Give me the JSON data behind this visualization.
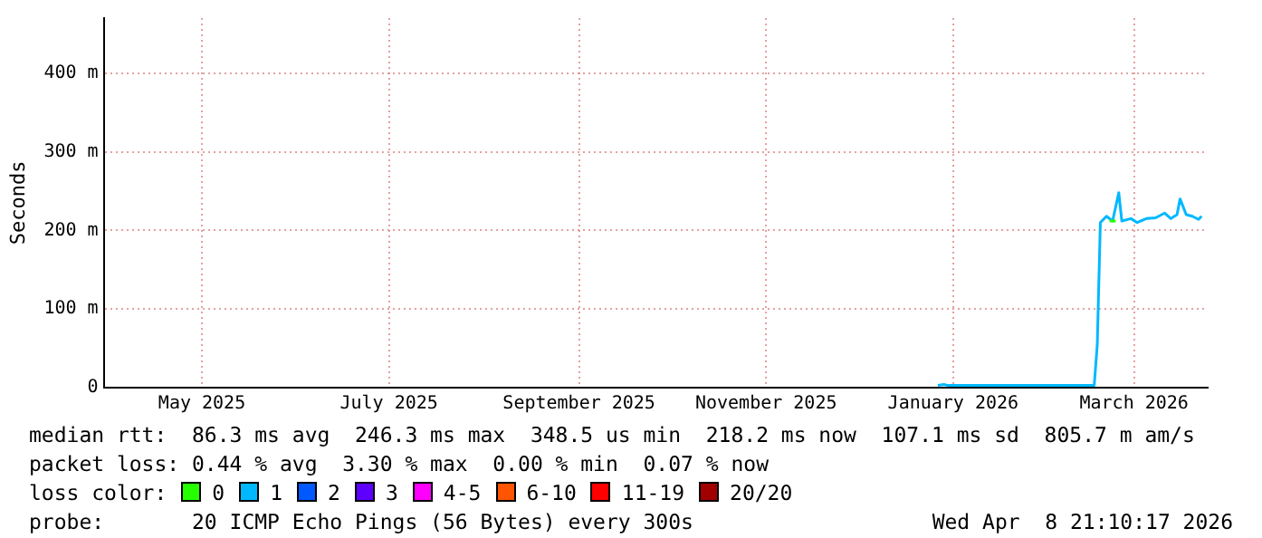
{
  "chart_data": {
    "type": "line",
    "ylabel": "Seconds",
    "legend_title": "loss color:",
    "legend": "bottom",
    "grid": true,
    "marker": "none",
    "line_style": "solid",
    "xlim": [
      "2025-04-13",
      "2026-04-08"
    ],
    "xticks": [
      {
        "value": "2025-05-15",
        "label": "May 2025"
      },
      {
        "value": "2025-07-15",
        "label": "July 2025"
      },
      {
        "value": "2025-09-15",
        "label": "September 2025"
      },
      {
        "value": "2025-11-15",
        "label": "November 2025"
      },
      {
        "value": "2026-01-15",
        "label": "January 2026"
      },
      {
        "value": "2026-03-15",
        "label": "March 2026"
      }
    ],
    "ylim": [
      0,
      470
    ],
    "yticks": [
      0,
      {
        "value": 100,
        "label": "100 m"
      },
      {
        "value": 200,
        "label": "200 m"
      },
      {
        "value": 300,
        "label": "300 m"
      },
      {
        "value": 400,
        "label": "400 m"
      }
    ],
    "series": [
      {
        "name": "0",
        "color": "#26ff00",
        "x": [
          "2026-03-07",
          "2026-03-09"
        ],
        "values": [
          212,
          212
        ]
      },
      {
        "name": "1",
        "color": "#00b8ff",
        "x": [
          "2026-01-10",
          "2026-01-12",
          "2026-01-13",
          "2026-03-02",
          "2026-03-03",
          "2026-03-04",
          "2026-03-06",
          "2026-03-08",
          "2026-03-10",
          "2026-03-11",
          "2026-03-14",
          "2026-03-16",
          "2026-03-19",
          "2026-03-22",
          "2026-03-25",
          "2026-03-27",
          "2026-03-29",
          "2026-03-30",
          "2026-04-01",
          "2026-04-03",
          "2026-04-05",
          "2026-04-06"
        ],
        "values": [
          3,
          4,
          3,
          3,
          55,
          210,
          218,
          212,
          248,
          212,
          215,
          210,
          215,
          216,
          222,
          215,
          220,
          240,
          220,
          218,
          214,
          218
        ]
      },
      {
        "name": "2",
        "color": "#0059ff"
      },
      {
        "name": "3",
        "color": "#5e00ff"
      },
      {
        "name": "4-5",
        "color": "#ff00ff"
      },
      {
        "name": "6-10",
        "color": "#ff5500"
      },
      {
        "name": "11-19",
        "color": "#ff0000"
      },
      {
        "name": "20/20",
        "color": "#a10000"
      }
    ],
    "annotations": [
      "median rtt:  86.3 ms avg  246.3 ms max  348.5 us min  218.2 ms now  107.1 ms sd  805.7 m am/s",
      "packet loss: 0.44 % avg  3.30 % max  0.00 % min  0.07 % now",
      "probe:       20 ICMP Echo Pings (56 Bytes) every 300s",
      "Wed Apr  8 21:10:17 2026"
    ]
  }
}
